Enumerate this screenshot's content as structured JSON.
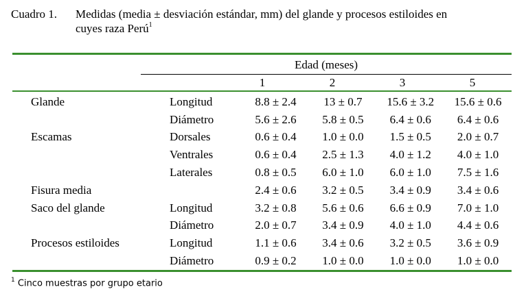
{
  "caption": {
    "label": "Cuadro 1.",
    "text_line1": "Medidas (media ± desviación estándar, mm) del glande y procesos estiloides en",
    "text_line2": "cuyes raza Perú",
    "footnote_mark": "1"
  },
  "table": {
    "spanner": "Edad (meses)",
    "columns": [
      "1",
      "2",
      "3",
      "5"
    ],
    "rows": [
      {
        "group": "Glande",
        "sub": "Longitud",
        "values": [
          "8.8 ± 2.4",
          "13 ± 0.7",
          "15.6 ± 3.2",
          "15.6 ± 0.6"
        ]
      },
      {
        "group": "",
        "sub": "Diámetro",
        "values": [
          "5.6 ± 2.6",
          "5.8 ± 0.5",
          "6.4 ± 0.6",
          "6.4 ± 0.6"
        ]
      },
      {
        "group": "Escamas",
        "sub": "Dorsales",
        "values": [
          "0.6 ± 0.4",
          "1.0 ± 0.0",
          "1.5 ± 0.5",
          "2.0 ± 0.7"
        ]
      },
      {
        "group": "",
        "sub": "Ventrales",
        "values": [
          "0.6 ± 0.4",
          "2.5 ± 1.3",
          "4.0 ± 1.2",
          "4.0 ± 1.0"
        ]
      },
      {
        "group": "",
        "sub": "Laterales",
        "values": [
          "0.8 ± 0.5",
          "6.0 ± 1.0",
          "6.0 ± 1.0",
          "7.5 ± 1.6"
        ]
      },
      {
        "group": "Fisura media",
        "sub": "",
        "values": [
          "2.4 ± 0.6",
          "3.2 ± 0.5",
          "3.4 ± 0.9",
          "3.4 ± 0.6"
        ]
      },
      {
        "group": "Saco del glande",
        "sub": "Longitud",
        "values": [
          "3.2 ± 0.8",
          "5.6 ± 0.6",
          "6.6 ± 0.9",
          "7.0 ± 1.0"
        ]
      },
      {
        "group": "",
        "sub": "Diámetro",
        "values": [
          "2.0 ± 0.7",
          "3.4 ± 0.9",
          "4.0 ± 1.0",
          "4.4 ± 0.6"
        ]
      },
      {
        "group": "Procesos estiloides",
        "sub": "Longitud",
        "values": [
          "1.1 ± 0.6",
          "3.4 ± 0.6",
          "3.2 ± 0.5",
          "3.6 ± 0.9"
        ]
      },
      {
        "group": "",
        "sub": "Diámetro",
        "values": [
          "0.9 ± 0.2",
          "1.0 ± 0.0",
          "1.0 ± 0.0",
          "1.0 ± 0.0"
        ]
      }
    ]
  },
  "footnote": {
    "mark": "1",
    "text": "Cinco muestras por grupo etario"
  },
  "colors": {
    "rule_green": "#3a8f2e",
    "text": "#000000"
  }
}
